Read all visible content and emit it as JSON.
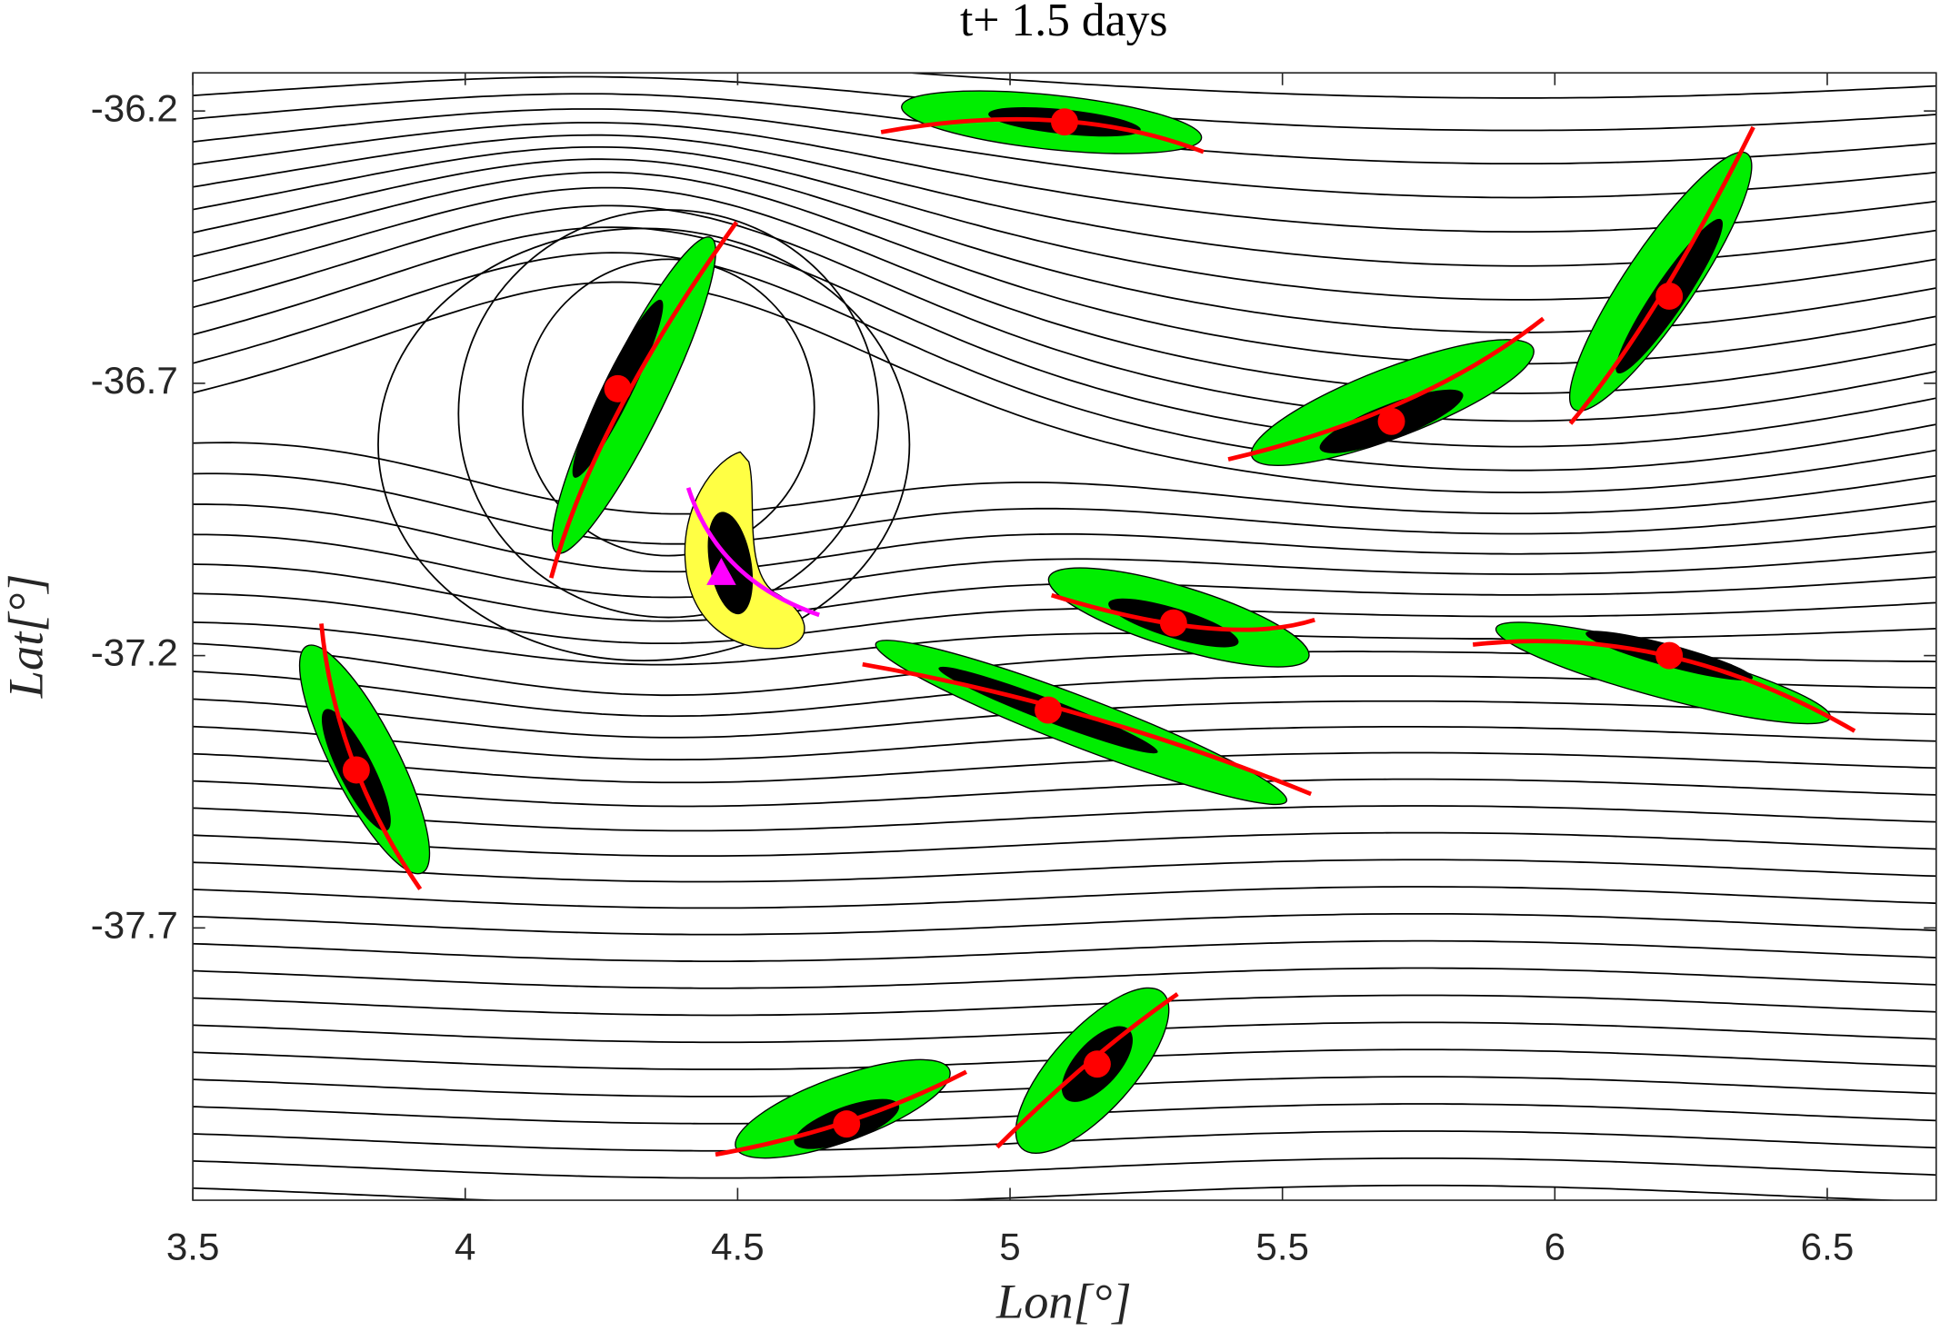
{
  "chart_data": {
    "type": "scatter",
    "title": "t+ 1.5 days",
    "x_label": "Lon[°]",
    "y_label": "Lat[°]",
    "xlim": [
      3.5,
      6.7
    ],
    "ylim": [
      -38.2,
      -36.13
    ],
    "xticks": [
      3.5,
      4,
      4.5,
      5,
      5.5,
      6,
      6.5
    ],
    "yticks": [
      -36.2,
      -36.7,
      -37.2,
      -37.7
    ],
    "grid": false,
    "series": [
      {
        "color": "#ff0000",
        "marker": "circle",
        "x": [
          5.1,
          6.21,
          4.28,
          5.7,
          5.3,
          6.21,
          5.07,
          3.8,
          5.16,
          4.7
        ],
        "y": [
          -36.22,
          -36.54,
          -36.71,
          -36.77,
          -37.14,
          -37.2,
          -37.3,
          -37.41,
          -37.95,
          -38.06
        ]
      },
      {
        "color": "#ff00ff",
        "marker": "triangle",
        "x": [
          4.47
        ],
        "y": [
          -37.05
        ]
      }
    ]
  }
}
